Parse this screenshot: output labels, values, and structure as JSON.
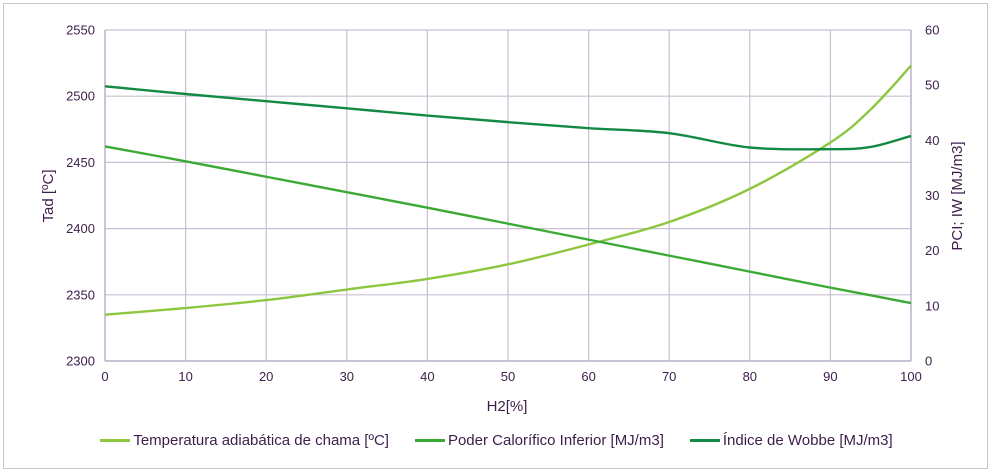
{
  "chart_data": {
    "type": "line",
    "title": "",
    "xlabel": "H2[%]",
    "ylabel": "Tad [ºC]",
    "y2label": "PCI; IW [MJ/m3]",
    "xlim": [
      0,
      100
    ],
    "ylim": [
      2300,
      2550
    ],
    "y2lim": [
      0,
      60
    ],
    "x_ticks": [
      0,
      10,
      20,
      30,
      40,
      50,
      60,
      70,
      80,
      90,
      100
    ],
    "y_ticks": [
      2300,
      2350,
      2400,
      2450,
      2500,
      2550
    ],
    "y2_ticks": [
      0,
      10,
      20,
      30,
      40,
      50,
      60
    ],
    "grid": true,
    "legend_position": "bottom",
    "x": [
      0,
      10,
      20,
      30,
      40,
      50,
      60,
      70,
      80,
      90,
      95,
      100
    ],
    "series": [
      {
        "name": "Temperatura adiabática de chama [ºC]",
        "axis": "left",
        "color": "#8dc63f",
        "values": [
          2335,
          2340,
          2346,
          2354,
          2362,
          2373,
          2388,
          2405,
          2430,
          2465,
          2490,
          2523
        ]
      },
      {
        "name": "Poder Calorífico Inferior [MJ/m3]",
        "axis": "right",
        "color": "#3aaa35",
        "values": [
          38.9,
          36.2,
          33.4,
          30.6,
          27.8,
          24.9,
          22.0,
          19.1,
          16.2,
          13.3,
          11.9,
          10.5
        ]
      },
      {
        "name": "Índice de Wobbe [MJ/m3]",
        "axis": "right",
        "color": "#138a43",
        "values": [
          49.8,
          48.4,
          47.1,
          45.8,
          44.5,
          43.3,
          42.2,
          41.3,
          38.7,
          38.4,
          38.8,
          40.8
        ]
      }
    ]
  }
}
